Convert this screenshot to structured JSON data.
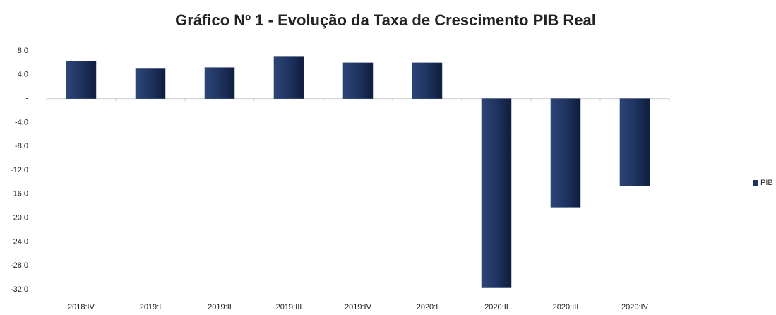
{
  "chart_data": {
    "type": "bar",
    "title": "Gráfico Nº 1 - Evolução da Taxa de Crescimento PIB Real",
    "categories": [
      "2018:IV",
      "2019:I",
      "2019:II",
      "2019:III",
      "2019:IV",
      "2020:I",
      "2020:II",
      "2020:III",
      "2020:IV"
    ],
    "series": [
      {
        "name": "PIB",
        "color": "#1f3461",
        "values": [
          6.3,
          5.1,
          5.2,
          7.1,
          6.0,
          6.0,
          -31.7,
          -18.2,
          -14.6
        ]
      }
    ],
    "ylim": [
      -32,
      8
    ],
    "yticks": [
      {
        "value": 8,
        "label": "8,0"
      },
      {
        "value": 4,
        "label": "4,0"
      },
      {
        "value": 0,
        "label": "-"
      },
      {
        "value": -4,
        "label": "-4,0"
      },
      {
        "value": -8,
        "label": "-8,0"
      },
      {
        "value": -12,
        "label": "-12,0"
      },
      {
        "value": -16,
        "label": "-16,0"
      },
      {
        "value": -20,
        "label": "-20,0"
      },
      {
        "value": -24,
        "label": "-24,0"
      },
      {
        "value": -28,
        "label": "-28,0"
      },
      {
        "value": -32,
        "label": "-32,0"
      }
    ],
    "legend": "right"
  }
}
